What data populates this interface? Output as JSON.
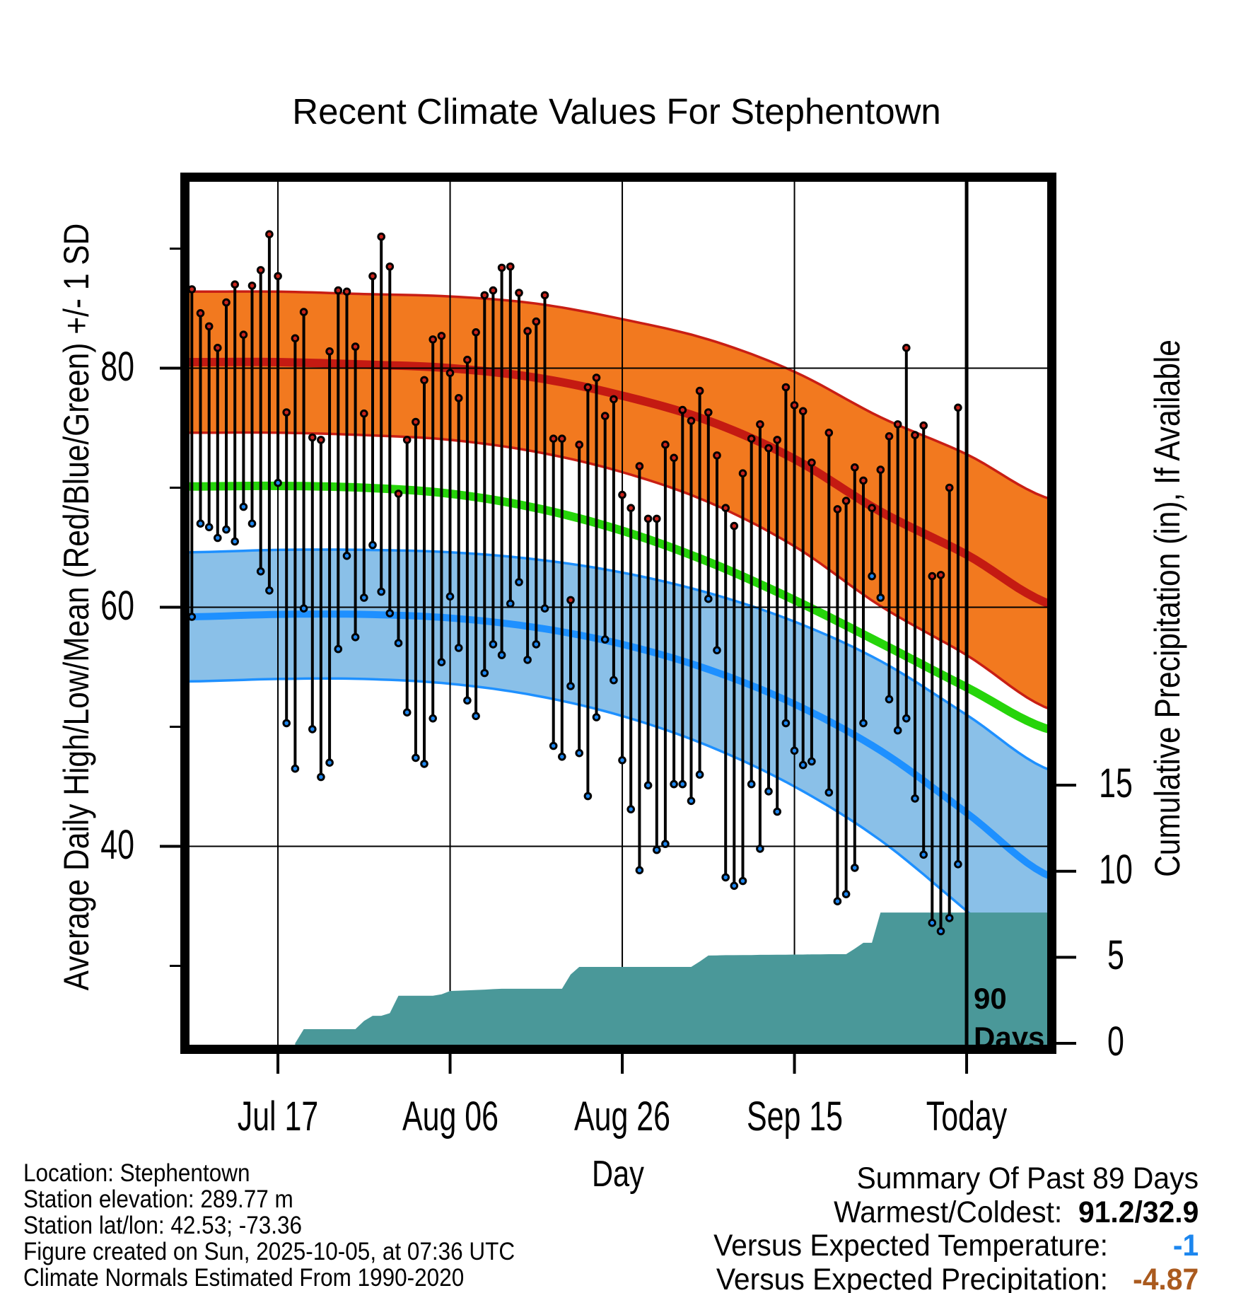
{
  "title": "Recent Climate Values For Stephentown",
  "annotation_90days": {
    "line1": "90",
    "line2": "Days"
  },
  "footer": {
    "location": "Location: Stephentown",
    "elevation": "Station elevation: 289.77 m",
    "latlon": "Station lat/lon: 42.53; -73.36",
    "created": "Figure created on Sun, 2025-10-05, at 07:36 UTC",
    "normals": "Climate Normals Estimated From 1990-2020"
  },
  "summary": {
    "heading": "Summary Of Past 89 Days",
    "warmest_coldest_label": "Warmest/Coldest:",
    "warmest_coldest_value": "91.2/32.9",
    "vs_temp_label": "Versus Expected Temperature:",
    "vs_temp_value": "-1",
    "vs_precip_label": "Versus Expected Precipitation:",
    "vs_precip_value": "-4.87"
  },
  "chart_data": {
    "type": "line",
    "title": "Recent Climate Values For Stephentown",
    "xlabel": "Day",
    "ylabel_left": "Average Daily High/Low/Mean (Red/Blue/Green) +/- 1 SD",
    "ylabel_right": "Cumulative Precipitation (in), If Available",
    "x_tick_labels": [
      "Jul 17",
      "Aug 06",
      "Aug 26",
      "Sep 15",
      "Today"
    ],
    "x_tick_days": [
      10,
      30,
      50,
      70,
      90
    ],
    "y_left_ticks": [
      40,
      60,
      80
    ],
    "y_left_minor_ticks": [
      30,
      50,
      70,
      90
    ],
    "y_right_ticks": [
      0,
      5,
      10,
      15
    ],
    "today_vline_day": 90,
    "daily_high": [
      86.6,
      84.6,
      83.5,
      81.7,
      85.5,
      87.0,
      82.8,
      86.9,
      88.2,
      91.2,
      87.7,
      76.3,
      82.5,
      84.7,
      74.2,
      74.0,
      81.4,
      86.5,
      86.4,
      81.8,
      76.2,
      87.7,
      91.0,
      88.5,
      69.5,
      74.0,
      75.5,
      79.0,
      82.4,
      82.7,
      79.6,
      77.5,
      80.7,
      83.0,
      86.1,
      86.5,
      88.4,
      88.5,
      86.3,
      83.1,
      83.9,
      86.1,
      74.1,
      74.1,
      60.6,
      73.6,
      78.4,
      79.2,
      76.0,
      77.4,
      69.4,
      68.3,
      71.8,
      67.4,
      67.4,
      73.6,
      72.5,
      76.5,
      75.6,
      78.1,
      76.3,
      72.7,
      68.3,
      66.8,
      71.2,
      74.1,
      75.3,
      73.3,
      74.0,
      78.4,
      76.9,
      76.4,
      72.1,
      null,
      74.6,
      68.2,
      68.9,
      71.7,
      70.6,
      68.3,
      71.5,
      74.3,
      75.3,
      81.7,
      74.4,
      75.2,
      62.6,
      62.7,
      70.0,
      76.7
    ],
    "daily_low": [
      59.2,
      67.0,
      66.7,
      65.8,
      66.5,
      65.5,
      68.4,
      67.0,
      63.0,
      61.4,
      70.4,
      50.3,
      46.5,
      59.9,
      49.8,
      45.8,
      47.0,
      56.5,
      64.3,
      57.5,
      60.8,
      65.2,
      61.3,
      59.5,
      57.0,
      51.2,
      47.4,
      46.9,
      50.7,
      55.4,
      60.9,
      56.6,
      52.2,
      50.9,
      54.5,
      56.9,
      56.0,
      60.3,
      62.1,
      55.6,
      56.9,
      59.9,
      48.4,
      47.5,
      53.4,
      47.8,
      44.2,
      50.8,
      57.3,
      53.9,
      47.2,
      43.1,
      38.0,
      45.1,
      39.7,
      40.2,
      45.2,
      45.2,
      43.8,
      46.0,
      60.7,
      56.4,
      37.4,
      36.7,
      37.1,
      45.2,
      39.8,
      44.6,
      42.9,
      50.3,
      48.0,
      46.8,
      47.1,
      null,
      44.5,
      35.4,
      36.0,
      38.2,
      50.3,
      62.6,
      60.8,
      52.3,
      49.7,
      50.7,
      44.0,
      39.3,
      33.6,
      32.9,
      34.0,
      38.5
    ],
    "cum_precip": [
      0,
      0,
      0,
      0,
      0,
      0,
      0,
      0,
      0,
      0,
      0,
      0,
      0,
      0.82,
      0.82,
      0.82,
      0.82,
      0.82,
      0.82,
      0.82,
      1.3,
      1.6,
      1.6,
      1.75,
      2.76,
      2.76,
      2.76,
      2.76,
      2.76,
      2.85,
      3.04,
      3.06,
      3.08,
      3.1,
      3.12,
      3.15,
      3.17,
      3.17,
      3.17,
      3.17,
      3.17,
      3.17,
      3.17,
      3.17,
      4.0,
      4.44,
      4.44,
      4.44,
      4.44,
      4.44,
      4.44,
      4.44,
      4.44,
      4.44,
      4.44,
      4.44,
      4.44,
      4.44,
      4.44,
      4.75,
      5.1,
      5.11,
      5.12,
      5.12,
      5.13,
      5.13,
      5.14,
      5.14,
      5.15,
      5.15,
      5.16,
      5.16,
      5.17,
      5.17,
      5.18,
      5.18,
      5.18,
      5.5,
      5.84,
      5.84,
      7.6,
      7.6,
      7.6,
      7.6,
      7.6,
      7.6,
      7.6,
      7.6,
      7.6,
      7.6
    ],
    "normals": {
      "sample_step_days": 10,
      "high_mean": [
        80.5,
        80.5,
        80.3,
        80.0,
        79.2,
        77.7,
        75.6,
        72.4,
        68.0,
        64.4,
        60.2
      ],
      "high_sd": [
        5.9,
        5.9,
        5.9,
        6.0,
        6.2,
        6.4,
        6.8,
        7.3,
        7.9,
        8.4,
        8.8
      ],
      "mean": [
        70.1,
        70.15,
        70.0,
        69.5,
        68.3,
        66.4,
        63.8,
        60.6,
        57.0,
        53.3,
        49.7
      ],
      "low_mean": [
        59.2,
        59.4,
        59.4,
        59.1,
        58.3,
        56.9,
        54.8,
        51.9,
        48.0,
        42.8,
        37.4
      ],
      "low_sd": [
        5.4,
        5.4,
        5.4,
        5.5,
        5.7,
        6.0,
        6.4,
        6.9,
        7.5,
        8.2,
        8.9
      ]
    },
    "colors": {
      "high_band_fill": "#F2791F",
      "high_band_edge": "#C81E14",
      "high_mean_line": "#C41A12",
      "low_band_fill": "#8AC0E8",
      "low_band_edge": "#1E90FF",
      "low_mean_line": "#1E90FF",
      "mean_line": "#26D40A",
      "precip_fill": "#4A9899",
      "high_dot": "#C8241C",
      "low_dot": "#1E86EE",
      "stem": "#000000"
    }
  }
}
